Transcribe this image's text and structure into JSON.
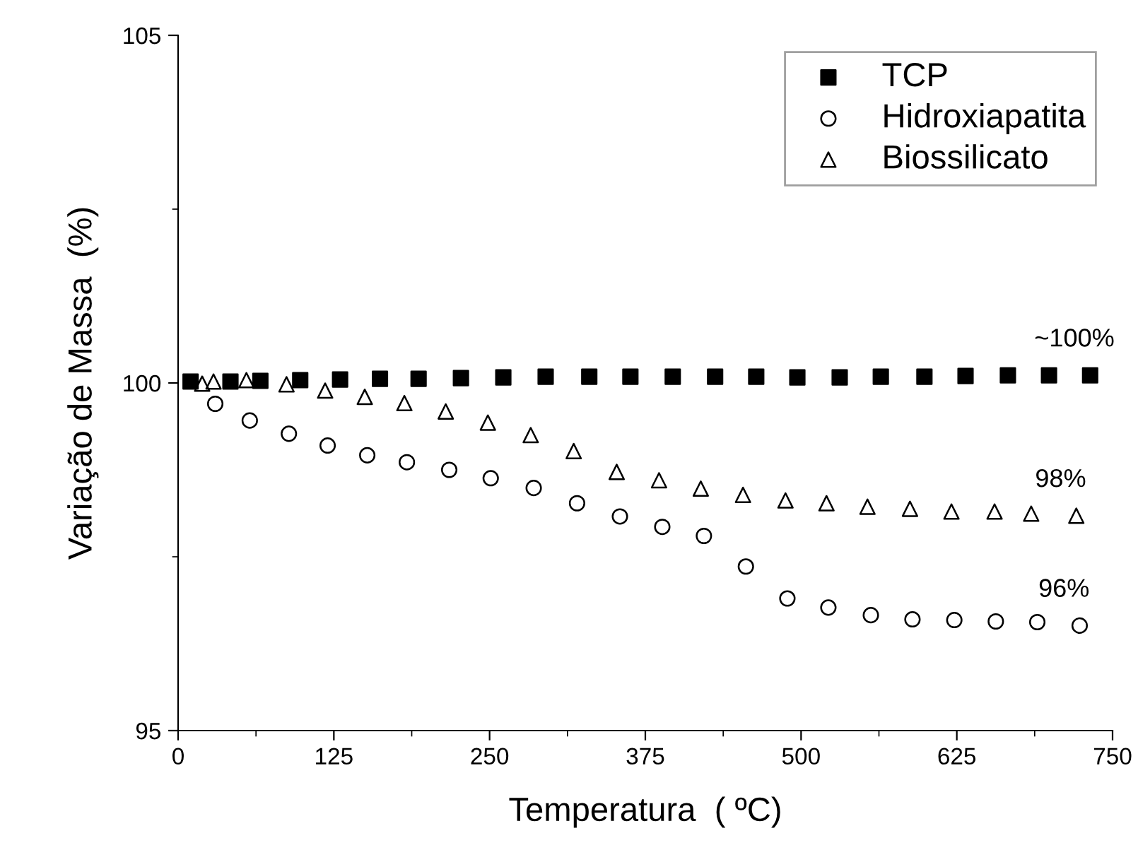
{
  "chart_data": {
    "type": "scatter",
    "xlabel": "Temperatura  ( ºC)",
    "ylabel": "Variação de Massa  (%)",
    "xlim": [
      0,
      750
    ],
    "xticks": [
      0,
      125,
      250,
      375,
      500,
      625,
      750
    ],
    "ylim": [
      95,
      105
    ],
    "yticks": [
      95,
      100,
      105
    ],
    "grid": false,
    "legend": "top right",
    "series": [
      {
        "name": "TCP",
        "color": "#000000",
        "marker": "square",
        "x": [
          10,
          42,
          66,
          98,
          130,
          162,
          193,
          227,
          261,
          295,
          330,
          363,
          397,
          431,
          464,
          497,
          531,
          564,
          599,
          632,
          666,
          699,
          732
        ],
        "values": [
          100.02,
          100.02,
          100.03,
          100.04,
          100.05,
          100.06,
          100.06,
          100.07,
          100.08,
          100.09,
          100.09,
          100.09,
          100.09,
          100.09,
          100.09,
          100.08,
          100.08,
          100.09,
          100.09,
          100.1,
          100.11,
          100.11,
          100.11
        ]
      },
      {
        "name": "Hidroxiapatita",
        "color": "#000000",
        "marker": "circle",
        "x": [
          29.8,
          57.5,
          88.9,
          120,
          151.8,
          183.6,
          217.6,
          250.9,
          285.4,
          320.2,
          354.6,
          388.6,
          422,
          455.7,
          489,
          521.9,
          556,
          589.4,
          623,
          656.3,
          689.6,
          723.6
        ],
        "values": [
          99.7,
          99.46,
          99.27,
          99.1,
          98.96,
          98.86,
          98.75,
          98.63,
          98.49,
          98.27,
          98.08,
          97.93,
          97.8,
          97.36,
          96.9,
          96.77,
          96.66,
          96.6,
          96.59,
          96.57,
          96.56,
          96.51
        ]
      },
      {
        "name": "Biossilicato",
        "color": "#000000",
        "marker": "triangle",
        "x": [
          19.3,
          28.4,
          54.8,
          87,
          118,
          149.8,
          181.6,
          214.8,
          248.6,
          283,
          317.5,
          352,
          386,
          419.5,
          453.4,
          487.5,
          520.4,
          553.3,
          587.4,
          620.7,
          655.3,
          684.7,
          720.9
        ],
        "values": [
          99.99,
          100.02,
          100.04,
          99.98,
          99.89,
          99.8,
          99.71,
          99.59,
          99.43,
          99.25,
          99.02,
          98.72,
          98.6,
          98.48,
          98.39,
          98.31,
          98.27,
          98.22,
          98.19,
          98.15,
          98.15,
          98.12,
          98.09
        ]
      }
    ],
    "annotations": [
      "~100%",
      "98%",
      "96%"
    ]
  }
}
